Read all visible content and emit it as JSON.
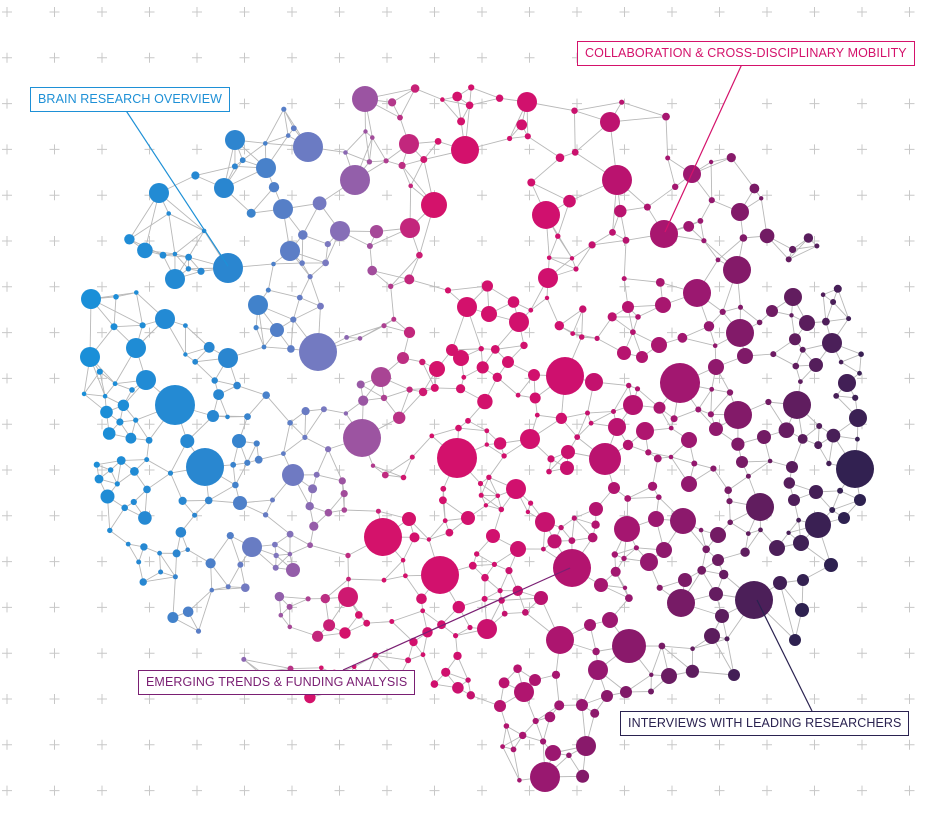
{
  "labels": {
    "brain_research": "BRAIN RESEARCH OVERVIEW",
    "collaboration": "COLLABORATION & CROSS-DISCIPLINARY MOBILITY",
    "emerging_trends": "EMERGING TRENDS & FUNDING ANALYSIS",
    "interviews": "INTERVIEWS WITH LEADING RESEARCHERS"
  },
  "colors": {
    "brain_research": "#1e90d6",
    "collaboration": "#d4126b",
    "emerging_trends": "#7a1f73",
    "interviews": "#2a2250",
    "grid_cross": "#c8c8c8",
    "edge": "#b8b8b8"
  },
  "icons": {
    "grid": "plus-cross-icon"
  }
}
